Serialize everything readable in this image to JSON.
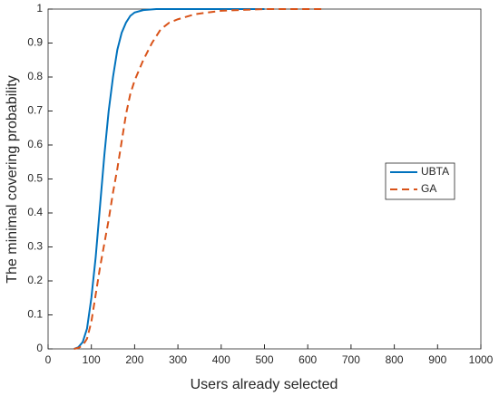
{
  "chart_data": {
    "type": "line",
    "x_label": "Users already selected",
    "y_label": "The minimal covering probability",
    "xlim": [
      0,
      1000
    ],
    "xticks": [
      0,
      100,
      200,
      300,
      400,
      500,
      600,
      700,
      800,
      900,
      1000
    ],
    "ylim": [
      0,
      1
    ],
    "yticks": [
      0,
      0.1,
      0.2,
      0.3,
      0.4,
      0.5,
      0.6,
      0.7,
      0.8,
      0.9,
      1
    ],
    "legend": "right",
    "series": [
      {
        "name": "UBTA",
        "color": "#0072bd",
        "dash": "solid",
        "x": [
          60,
          70,
          80,
          90,
          100,
          110,
          120,
          130,
          140,
          150,
          160,
          170,
          180,
          190,
          200,
          220,
          250,
          300,
          400,
          500
        ],
        "values": [
          0,
          0.005,
          0.02,
          0.06,
          0.15,
          0.27,
          0.42,
          0.57,
          0.7,
          0.8,
          0.88,
          0.93,
          0.96,
          0.98,
          0.99,
          0.997,
          1,
          1,
          1,
          1
        ]
      },
      {
        "name": "GA",
        "color": "#d95319",
        "dash": "dashed",
        "x": [
          60,
          70,
          80,
          90,
          100,
          110,
          120,
          130,
          140,
          150,
          160,
          170,
          180,
          190,
          200,
          220,
          240,
          260,
          280,
          300,
          340,
          400,
          500,
          640
        ],
        "values": [
          0,
          0.003,
          0.01,
          0.03,
          0.08,
          0.16,
          0.24,
          0.31,
          0.38,
          0.46,
          0.53,
          0.61,
          0.69,
          0.75,
          0.79,
          0.85,
          0.9,
          0.94,
          0.96,
          0.97,
          0.985,
          0.995,
          1,
          1
        ]
      }
    ]
  }
}
